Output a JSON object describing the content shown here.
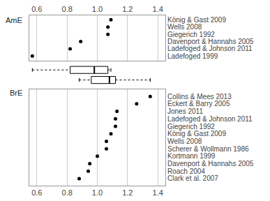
{
  "chart_data": {
    "type": "dot",
    "xlim": [
      0.55,
      1.45
    ],
    "xticks": [
      0.6,
      0.8,
      {
        "value": 1.0,
        "label": "1.0"
      },
      1.2,
      1.4
    ],
    "grid": true,
    "marker": "circle",
    "color": "#000000",
    "panels": [
      {
        "label": "AmE",
        "categories": [
          "König & Gast 2009",
          "Wells 2008",
          "Giegerich 1992",
          "Davenport & Hannahs 2005",
          "Ladefoged & Johnson 2011",
          "Ladefoged 1999"
        ],
        "values": [
          1.09,
          1.07,
          1.07,
          0.89,
          0.82,
          0.57
        ],
        "box": {
          "whislo": 0.57,
          "q1": 0.82,
          "median": 0.98,
          "q3": 1.07,
          "whishi": 1.09
        }
      },
      {
        "label": "BrE",
        "categories": [
          "Collins & Mees 2013",
          "Eckert & Barry 2005",
          "Jones 2011",
          "Ladefoged & Johnson 2011",
          "Giegerich 1992",
          "König & Gast 2009",
          "Wells 2008",
          "Scherer & Wollmann 1986",
          "Kortmann 1999",
          "Davenport & Hannahs 2005",
          "Roach 2004",
          "Clark et al. 2007"
        ],
        "values": [
          1.35,
          1.26,
          1.13,
          1.12,
          1.12,
          1.09,
          1.06,
          1.06,
          1.0,
          0.95,
          0.94,
          0.88
        ],
        "box": {
          "whislo": 0.88,
          "q1": 0.96,
          "median": 1.08,
          "q3": 1.12,
          "whishi": 1.35
        }
      }
    ]
  }
}
